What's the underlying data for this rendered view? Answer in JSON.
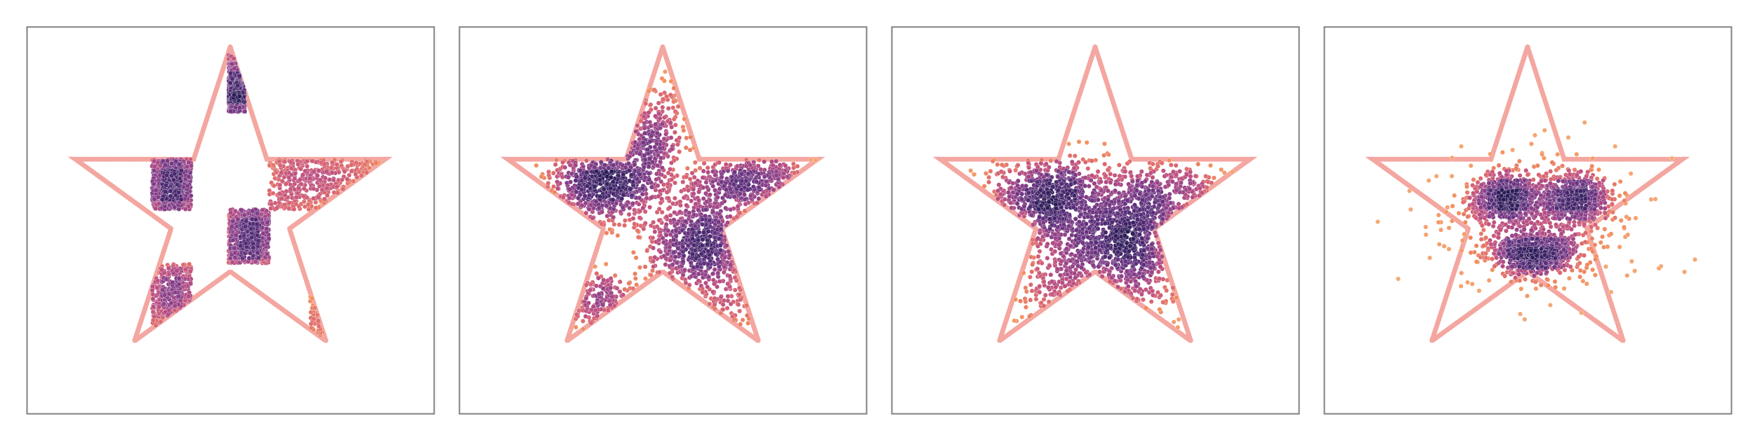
{
  "figure": {
    "background": "#ffffff",
    "frame_color": "#808080",
    "boundary_color": "#f4a6a0",
    "colormap": [
      "#2b1b57",
      "#5c2f7c",
      "#8b3f88",
      "#bb4f82",
      "#de6a6f",
      "#f2905f",
      "#f5b17c"
    ]
  },
  "chart_data": [
    {
      "type": "scatter",
      "panel": 1,
      "boundary": "star",
      "star": {
        "outer_radius": 1.0,
        "inner_radius": 0.382,
        "points": 5
      },
      "xlim": [
        -1.25,
        1.25
      ],
      "ylim": [
        -1.25,
        1.12
      ],
      "distribution": "checkerboard",
      "density_source": "uniform",
      "regions": [
        {
          "x": [
            -0.48,
            -0.24
          ],
          "y": [
            0.0,
            0.31
          ]
        },
        {
          "x": [
            0.24,
            0.95
          ],
          "y": [
            0.0,
            0.31
          ]
        },
        {
          "x": [
            -0.01,
            0.24
          ],
          "y": [
            -0.33,
            0.0
          ]
        },
        {
          "x": [
            -0.48,
            -0.24
          ],
          "y": [
            -0.85,
            -0.33
          ]
        },
        {
          "x": [
            0.49,
            0.95
          ],
          "y": [
            -0.85,
            -0.33
          ]
        },
        {
          "x": [
            -0.01,
            0.09
          ],
          "y": [
            0.6,
            0.95
          ]
        }
      ],
      "num_points": 2600
    },
    {
      "type": "scatter",
      "panel": 2,
      "boundary": "star",
      "star": {
        "outer_radius": 1.0,
        "inner_radius": 0.382,
        "points": 5
      },
      "xlim": [
        -1.25,
        1.25
      ],
      "ylim": [
        -1.25,
        1.12
      ],
      "distribution": "clusters",
      "clusters": [
        {
          "cx": -0.37,
          "cy": 0.15,
          "sx": 0.17,
          "sy": 0.12,
          "w": 0.26
        },
        {
          "cx": 0.24,
          "cy": -0.22,
          "sx": 0.16,
          "sy": 0.15,
          "w": 0.27
        },
        {
          "cx": 0.55,
          "cy": 0.17,
          "sx": 0.2,
          "sy": 0.09,
          "w": 0.16
        },
        {
          "cx": -0.06,
          "cy": 0.43,
          "sx": 0.12,
          "sy": 0.2,
          "w": 0.14
        },
        {
          "cx": -0.38,
          "cy": -0.6,
          "sx": 0.14,
          "sy": 0.12,
          "w": 0.1
        },
        {
          "cx": 0.42,
          "cy": -0.55,
          "sx": 0.15,
          "sy": 0.15,
          "w": 0.07
        }
      ],
      "num_points": 2300
    },
    {
      "type": "scatter",
      "panel": 3,
      "boundary": "star",
      "star": {
        "outer_radius": 1.0,
        "inner_radius": 0.382,
        "points": 5
      },
      "xlim": [
        -1.25,
        1.25
      ],
      "ylim": [
        -1.25,
        1.12
      ],
      "distribution": "clusters",
      "clusters": [
        {
          "cx": -0.29,
          "cy": 0.06,
          "sx": 0.2,
          "sy": 0.15,
          "w": 0.3
        },
        {
          "cx": 0.16,
          "cy": -0.21,
          "sx": 0.2,
          "sy": 0.17,
          "w": 0.34
        },
        {
          "cx": 0.42,
          "cy": 0.06,
          "sx": 0.22,
          "sy": 0.12,
          "w": 0.18
        },
        {
          "cx": -0.05,
          "cy": -0.55,
          "sx": 0.26,
          "sy": 0.16,
          "w": 0.18
        }
      ],
      "num_points": 2100
    },
    {
      "type": "scatter",
      "panel": 4,
      "boundary": "star",
      "star": {
        "outer_radius": 1.0,
        "inner_radius": 0.382,
        "points": 5
      },
      "xlim": [
        -1.25,
        1.25
      ],
      "ylim": [
        -1.25,
        1.12
      ],
      "distribution": "smiley",
      "clusters": [
        {
          "cx": -0.14,
          "cy": 0.07,
          "sx": 0.11,
          "sy": 0.07,
          "w": 0.36
        },
        {
          "cx": 0.29,
          "cy": 0.07,
          "sx": 0.11,
          "sy": 0.07,
          "w": 0.36
        },
        {
          "cx": 0.04,
          "cy": -0.26,
          "sx": 0.14,
          "sy": 0.07,
          "w": 0.28
        }
      ],
      "mouth_arc": {
        "cx": 0.04,
        "cy": -0.12,
        "r": 0.2,
        "points": 260
      },
      "halo": {
        "cx": 0.07,
        "cy": -0.08,
        "sx": 0.3,
        "sy": 0.22,
        "points": 420
      },
      "num_points": 1700
    }
  ]
}
